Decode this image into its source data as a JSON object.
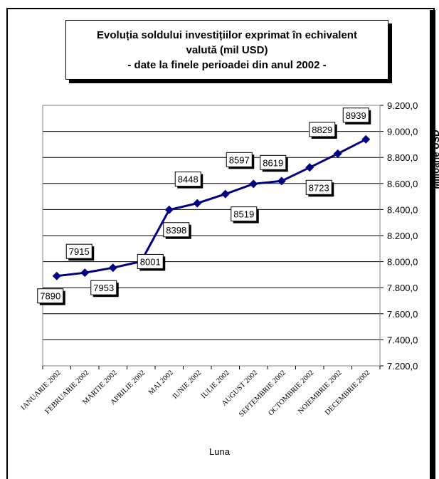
{
  "chart_data": {
    "type": "line",
    "title_lines": [
      "Evoluția soldului investițiilor exprimat în echivalent",
      "valută (mil USD)",
      "- date la finele perioadei din anul 2002 -"
    ],
    "xlabel": "Luna",
    "ylabel": "Milioane USD",
    "categories": [
      "IANUARIE 2002",
      "FEBRUARIE 2002",
      "MARTIE 2002",
      "APRILIE 2002",
      "MAI 2002",
      "IUNIE 2002",
      "IULIE 2002",
      "AUGUST 2002",
      "SEPTEMBRIE 2002",
      "OCTOMBRIE 2002",
      "NOIEMBRIE 2002",
      "DECEMBRIE 2002"
    ],
    "series": [
      {
        "values": [
          7890,
          7915,
          7953,
          8001,
          8398,
          8448,
          8519,
          8597,
          8619,
          8723,
          8829,
          8939
        ]
      }
    ],
    "data_labels": [
      "7890",
      "7915",
      "7953",
      "8001",
      "8398",
      "8448",
      "8519",
      "8597",
      "8619",
      "8723",
      "8829",
      "8939"
    ],
    "ylim": [
      7200,
      9200
    ],
    "yticks": [
      7200,
      7400,
      7600,
      7800,
      8000,
      8200,
      8400,
      8600,
      8800,
      9000,
      9200
    ],
    "ytick_labels": [
      "7.200,0",
      "7.400,0",
      "7.600,0",
      "7.800,0",
      "8.000,0",
      "8.200,0",
      "8.400,0",
      "8.600,0",
      "8.800,0",
      "9.000,0",
      "9.200,0"
    ],
    "grid": true,
    "y_axis_side": "right",
    "line_color": "#000080"
  }
}
